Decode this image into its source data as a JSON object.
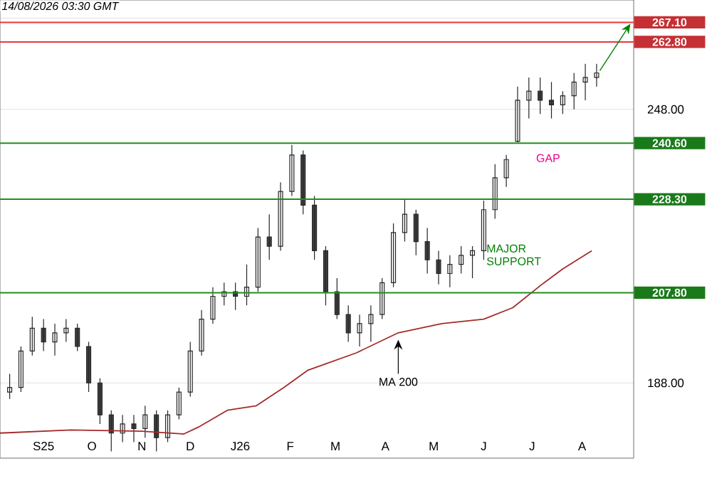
{
  "chart_data": {
    "type": "candlestick",
    "x": [
      "2025-08-11",
      "2025-08-18",
      "2025-08-25",
      "2025-09-01",
      "2025-09-08",
      "2025-09-15",
      "2025-09-22",
      "2025-09-29",
      "2025-10-06",
      "2025-10-13",
      "2025-10-20",
      "2025-10-27",
      "2025-11-03",
      "2025-11-10",
      "2025-11-17",
      "2025-11-24",
      "2025-12-01",
      "2025-12-08",
      "2025-12-15",
      "2025-12-22",
      "2025-12-29",
      "2026-01-05",
      "2026-01-12",
      "2026-01-19",
      "2026-01-26",
      "2026-02-02",
      "2026-02-09",
      "2026-02-16",
      "2026-02-23",
      "2026-03-02",
      "2026-03-09",
      "2026-03-16",
      "2026-03-23",
      "2026-03-30",
      "2026-04-06",
      "2026-04-13",
      "2026-04-20",
      "2026-04-27",
      "2026-05-04",
      "2026-05-11",
      "2026-05-18",
      "2026-05-25",
      "2026-06-01",
      "2026-06-08",
      "2026-06-15",
      "2026-06-22",
      "2026-06-29",
      "2026-07-06",
      "2026-07-13",
      "2026-07-20",
      "2026-07-27",
      "2026-08-03",
      "2026-08-10"
    ],
    "ohlc": [
      [
        186,
        190,
        184.5,
        187
      ],
      [
        187,
        196,
        186,
        195
      ],
      [
        195,
        202.5,
        194,
        200
      ],
      [
        200,
        202,
        195,
        197
      ],
      [
        197,
        201,
        194,
        199
      ],
      [
        199,
        202,
        197,
        200
      ],
      [
        200,
        201,
        195,
        196
      ],
      [
        196,
        197,
        186,
        188
      ],
      [
        188,
        189,
        179,
        181
      ],
      [
        181,
        182,
        173,
        177
      ],
      [
        177,
        181,
        175,
        179
      ],
      [
        179,
        181,
        175,
        178
      ],
      [
        178,
        183,
        176,
        181
      ],
      [
        181,
        182,
        173,
        176
      ],
      [
        176,
        182,
        175,
        181
      ],
      [
        181,
        187,
        180,
        186
      ],
      [
        186,
        197,
        185,
        195
      ],
      [
        195,
        204,
        194,
        202
      ],
      [
        202,
        209,
        201,
        207
      ],
      [
        207,
        210,
        205,
        208
      ],
      [
        208,
        210,
        204,
        207
      ],
      [
        207,
        214,
        205,
        209
      ],
      [
        209,
        222,
        208,
        220
      ],
      [
        220,
        225,
        215,
        218
      ],
      [
        218,
        232,
        217,
        230
      ],
      [
        230,
        240.2,
        229,
        238
      ],
      [
        238,
        239,
        225,
        227
      ],
      [
        227,
        229,
        215,
        217
      ],
      [
        217,
        218,
        205,
        208
      ],
      [
        208,
        211,
        202,
        203
      ],
      [
        203,
        205,
        197,
        199
      ],
      [
        199,
        203,
        196,
        201
      ],
      [
        201,
        205,
        197,
        203
      ],
      [
        203,
        211,
        202,
        210
      ],
      [
        210,
        223,
        209,
        221
      ],
      [
        221,
        228.3,
        219,
        225
      ],
      [
        225,
        226,
        216,
        219
      ],
      [
        219,
        222,
        212,
        215
      ],
      [
        215,
        217,
        209.6,
        212
      ],
      [
        212,
        216,
        209,
        214
      ],
      [
        214,
        218,
        212,
        216
      ],
      [
        216,
        218,
        211,
        217
      ],
      [
        217,
        228,
        215,
        226
      ],
      [
        226,
        236,
        224,
        233
      ],
      [
        233,
        238,
        231,
        237
      ],
      [
        241,
        253,
        240.8,
        250
      ],
      [
        250,
        255,
        246,
        252
      ],
      [
        252,
        255,
        247,
        250
      ],
      [
        250,
        254,
        246,
        249
      ],
      [
        249,
        252,
        247,
        251
      ],
      [
        251,
        256,
        248,
        254
      ],
      [
        254,
        258,
        250,
        255
      ],
      [
        255,
        258,
        253,
        256
      ]
    ],
    "series": [
      {
        "name": "MA 200",
        "type": "line",
        "color": "#a52a2a",
        "x": [
          "2025-08-05",
          "2025-09-18",
          "2025-11-01",
          "2025-11-27",
          "2025-12-06",
          "2025-12-24",
          "2026-01-11",
          "2026-01-28",
          "2026-02-12",
          "2026-03-14",
          "2026-04-09",
          "2026-05-06",
          "2026-06-01",
          "2026-06-19",
          "2026-07-07",
          "2026-07-20",
          "2026-08-07"
        ],
        "values": [
          177,
          177.7,
          177.4,
          176.8,
          178.3,
          182,
          183,
          187,
          190.8,
          194.6,
          199,
          201,
          202,
          204.5,
          209.6,
          213,
          217
        ]
      }
    ],
    "xlim": [
      "2025-08-05",
      "2026-09-02"
    ],
    "ylim": [
      171.5,
      272
    ],
    "xticks": [
      {
        "value": "2025-09-01",
        "label": "S25"
      },
      {
        "value": "2025-10-01",
        "label": "O"
      },
      {
        "value": "2025-11-01",
        "label": "N"
      },
      {
        "value": "2025-12-01",
        "label": "D"
      },
      {
        "value": "2026-01-01",
        "label": "J26"
      },
      {
        "value": "2026-02-01",
        "label": "F"
      },
      {
        "value": "2026-03-01",
        "label": "M"
      },
      {
        "value": "2026-04-01",
        "label": "A"
      },
      {
        "value": "2026-05-01",
        "label": "M"
      },
      {
        "value": "2026-06-01",
        "label": "J"
      },
      {
        "value": "2026-07-01",
        "label": "J"
      },
      {
        "value": "2026-08-01",
        "label": "A"
      }
    ],
    "yticks": [
      {
        "value": 188,
        "label": "188.00"
      },
      {
        "value": 248,
        "label": "248.00"
      },
      {
        "value": 268,
        "label": null
      }
    ],
    "grid": "y",
    "ref_lines": [
      {
        "axis": "y",
        "value": 267.1,
        "label": "267.10",
        "color": "#e8383d"
      },
      {
        "axis": "y",
        "value": 262.8,
        "label": "262.80",
        "color": "#e8383d"
      },
      {
        "axis": "y",
        "value": 240.6,
        "label": "240.60",
        "color": "#1f8f1f"
      },
      {
        "axis": "y",
        "value": 228.3,
        "label": "228.30",
        "color": "#1f8f1f"
      },
      {
        "axis": "y",
        "value": 207.8,
        "label": "207.80",
        "color": "#1f8f1f"
      }
    ],
    "annotations": [
      "14/08/2026 03:30 GMT",
      "GAP",
      "MAJOR SUPPORT"
    ]
  }
}
